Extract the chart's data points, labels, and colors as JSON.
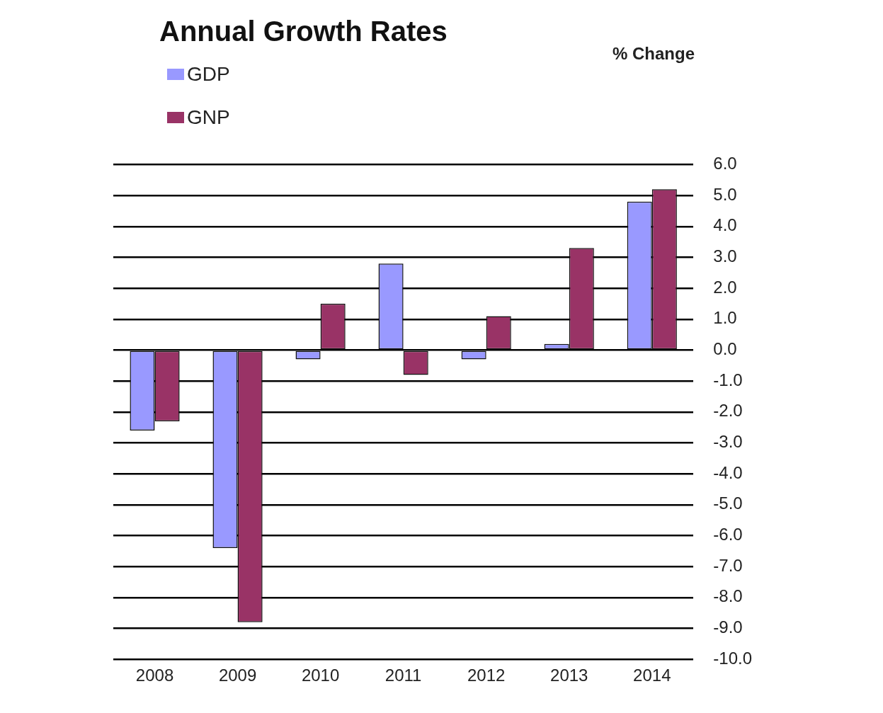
{
  "chart_data": {
    "type": "bar",
    "title": "Annual Growth Rates",
    "annotations": [
      "% Change"
    ],
    "categories": [
      "2008",
      "2009",
      "2010",
      "2011",
      "2012",
      "2013",
      "2014"
    ],
    "series": [
      {
        "name": "GDP",
        "color": "#9999ff",
        "values": [
          -2.6,
          -6.4,
          -0.3,
          2.8,
          -0.3,
          0.2,
          4.8
        ]
      },
      {
        "name": "GNP",
        "color": "#993366",
        "values": [
          -2.3,
          -8.8,
          1.5,
          -0.8,
          1.1,
          3.3,
          5.2
        ]
      }
    ],
    "ylim": [
      -10,
      6
    ],
    "yticks": [
      {
        "value": 6,
        "label": "6.0"
      },
      {
        "value": 5,
        "label": "5.0"
      },
      {
        "value": 4,
        "label": "4.0"
      },
      {
        "value": 3,
        "label": "3.0"
      },
      {
        "value": 2,
        "label": "2.0"
      },
      {
        "value": 1,
        "label": "1.0"
      },
      {
        "value": 0,
        "label": "0.0"
      },
      {
        "value": -1,
        "label": "-1.0"
      },
      {
        "value": -2,
        "label": "-2.0"
      },
      {
        "value": -3,
        "label": "-3.0"
      },
      {
        "value": -4,
        "label": "-4.0"
      },
      {
        "value": -5,
        "label": "-5.0"
      },
      {
        "value": -6,
        "label": "-6.0"
      },
      {
        "value": -7,
        "label": "-7.0"
      },
      {
        "value": -8,
        "label": "-8.0"
      },
      {
        "value": -9,
        "label": "-9.0"
      },
      {
        "value": -10,
        "label": "-10.0"
      }
    ],
    "grid": "y",
    "legend": "top left"
  }
}
